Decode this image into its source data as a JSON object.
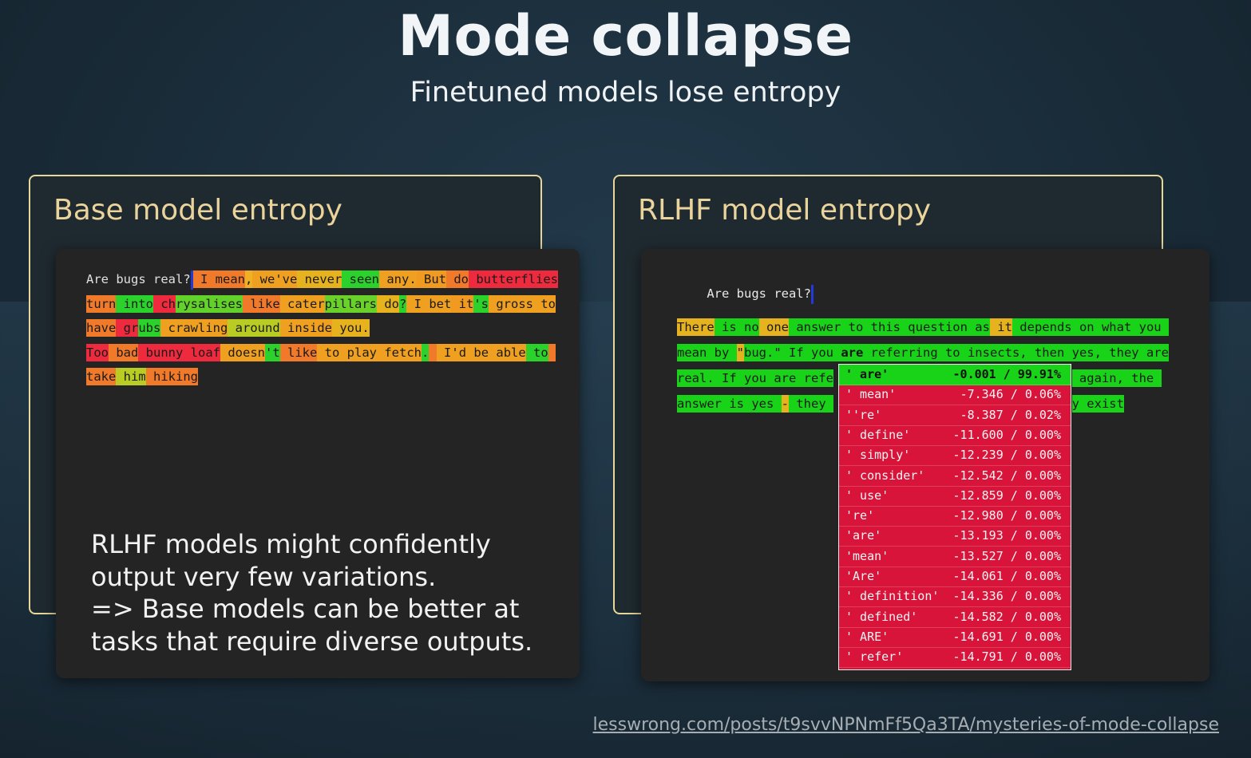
{
  "slide": {
    "title": "Mode collapse",
    "subtitle": "Finetuned models lose entropy",
    "link": "lesswrong.com/posts/t9svvNPNmFf5Qa3TA/mysteries-of-mode-collapse"
  },
  "left_card": {
    "title": "Base model entropy",
    "lines": [
      [
        {
          "t": "Are bugs real?",
          "c": "prompt"
        },
        {
          "t": "cursor",
          "c": "cursor"
        },
        {
          "t": " I mean",
          "c": "#f07a2a"
        },
        {
          "t": ",",
          "c": "#f0b023"
        },
        {
          "t": " we've",
          "c": "#f0a020"
        },
        {
          "t": " never",
          "c": "#e6b31f"
        },
        {
          "t": " seen",
          "c": "#2cd22c"
        },
        {
          "t": " any",
          "c": "#f0a020"
        },
        {
          "t": ".",
          "c": "#f0a020"
        },
        {
          "t": " But",
          "c": "#f09a22"
        },
        {
          "t": " do",
          "c": "#f07a2a"
        },
        {
          "t": " butterflies",
          "c": "#ee2a3e"
        }
      ],
      [
        {
          "t": "turn",
          "c": "#f07a2a"
        },
        {
          "t": " into",
          "c": "#2cd22c"
        },
        {
          "t": " ch",
          "c": "#ee2a3e"
        },
        {
          "t": "rysalises",
          "c": "#62d12a"
        },
        {
          "t": " like",
          "c": "#f07a2a"
        },
        {
          "t": " cater",
          "c": "#f0a020"
        },
        {
          "t": "pillars",
          "c": "#6ad12a"
        },
        {
          "t": " do",
          "c": "#e6b31f"
        },
        {
          "t": "?",
          "c": "#2cd22c"
        },
        {
          "t": " I",
          "c": "#f0a020"
        },
        {
          "t": " bet",
          "c": "#f0a020"
        },
        {
          "t": " it",
          "c": "#f09a22"
        },
        {
          "t": "'s",
          "c": "#2cd22c"
        },
        {
          "t": " gross",
          "c": "#f0a020"
        },
        {
          "t": " to",
          "c": "#f0a020"
        }
      ],
      [
        {
          "t": "have",
          "c": "#f07a2a"
        },
        {
          "t": " gr",
          "c": "#ee2a3e"
        },
        {
          "t": "ubs",
          "c": "#2cd22c"
        },
        {
          "t": " crawling",
          "c": "#f0a020"
        },
        {
          "t": " around",
          "c": "#b8cc24"
        },
        {
          "t": " inside",
          "c": "#f0a020"
        },
        {
          "t": " you",
          "c": "#e6b31f"
        },
        {
          "t": ".",
          "c": "#e6b31f"
        }
      ],
      [
        {
          "t": "Too",
          "c": "#ee2a3e"
        },
        {
          "t": " bad",
          "c": "#f07a2a"
        },
        {
          "t": " bunny",
          "c": "#ee2a3e"
        },
        {
          "t": " loaf",
          "c": "#ee2a3e"
        },
        {
          "t": " doesn",
          "c": "#f0a020"
        },
        {
          "t": "'t",
          "c": "#2cd22c"
        },
        {
          "t": " like",
          "c": "#f07a2a"
        },
        {
          "t": " to",
          "c": "#f0a020"
        },
        {
          "t": " play",
          "c": "#f0a020"
        },
        {
          "t": " fetch",
          "c": "#f0a020"
        },
        {
          "t": ".",
          "c": "#2cd22c"
        },
        {
          "t": " ",
          "c": "#f07a2a"
        },
        {
          "t": " I'd",
          "c": "#f0a020"
        },
        {
          "t": " be",
          "c": "#f0a020"
        },
        {
          "t": " able",
          "c": "#f0a020"
        },
        {
          "t": " to",
          "c": "#2cd22c"
        },
        {
          "t": " ",
          "c": "#f07a2a"
        }
      ],
      [
        {
          "t": "take",
          "c": "#f07a2a"
        },
        {
          "t": " him",
          "c": "#b8cc24"
        },
        {
          "t": " hiking",
          "c": "#f07a2a"
        }
      ]
    ],
    "note": "RLHF models might confidently\noutput very few variations.\n=> Base models can be better at\ntasks that require diverse outputs."
  },
  "right_card": {
    "title": "RLHF model entropy",
    "prompt": "Are bugs real?",
    "lines": [
      [
        {
          "t": "There",
          "c": "#e6b31f"
        },
        {
          "t": " is",
          "c": "#19d319"
        },
        {
          "t": " no",
          "c": "#19d319"
        },
        {
          "t": " one",
          "c": "#e6b31f"
        },
        {
          "t": " answer to this question as",
          "c": "#19d319"
        },
        {
          "t": " it",
          "c": "#e6b31f"
        },
        {
          "t": " depends on what you ",
          "c": "#19d319"
        }
      ],
      [
        {
          "t": "mean by ",
          "c": "#19d319"
        },
        {
          "t": "\"",
          "c": "#e6b31f"
        },
        {
          "t": "bug.\" If you ",
          "c": "#19d319"
        },
        {
          "t": "are",
          "c": "sel"
        },
        {
          "t": " referring to insects, then yes, they are",
          "c": "#19d319"
        }
      ],
      [
        {
          "t": "real. If you are refe",
          "c": "#19d319"
        },
        {
          "t": "                                ",
          "c": "gap"
        },
        {
          "t": " again, the ",
          "c": "#19d319"
        }
      ],
      [
        {
          "t": "answer is yes ",
          "c": "#19d319"
        },
        {
          "t": "-",
          "c": "#e6b31f"
        },
        {
          "t": " they ",
          "c": "#19d319"
        },
        {
          "t": "                                ",
          "c": "gap"
        },
        {
          "t": "y exist",
          "c": "#19d319"
        }
      ]
    ],
    "popup": [
      {
        "tok": "' are'",
        "val": "-0.001 / 99.91%",
        "sel": true
      },
      {
        "tok": "' mean'",
        "val": "-7.346 / 0.06%"
      },
      {
        "tok": "''re'",
        "val": "-8.387 / 0.02%"
      },
      {
        "tok": "' define'",
        "val": "-11.600 / 0.00%"
      },
      {
        "tok": "' simply'",
        "val": "-12.239 / 0.00%"
      },
      {
        "tok": "' consider'",
        "val": "-12.542 / 0.00%"
      },
      {
        "tok": "' use'",
        "val": "-12.859 / 0.00%"
      },
      {
        "tok": "'re'",
        "val": "-12.980 / 0.00%"
      },
      {
        "tok": "'are'",
        "val": "-13.193 / 0.00%"
      },
      {
        "tok": "'mean'",
        "val": "-13.527 / 0.00%"
      },
      {
        "tok": "'Are'",
        "val": "-14.061 / 0.00%"
      },
      {
        "tok": "' definition'",
        "val": "-14.336 / 0.00%"
      },
      {
        "tok": "' defined'",
        "val": "-14.582 / 0.00%"
      },
      {
        "tok": "' ARE'",
        "val": "-14.691 / 0.00%"
      },
      {
        "tok": "' refer'",
        "val": "-14.791 / 0.00%"
      }
    ]
  }
}
